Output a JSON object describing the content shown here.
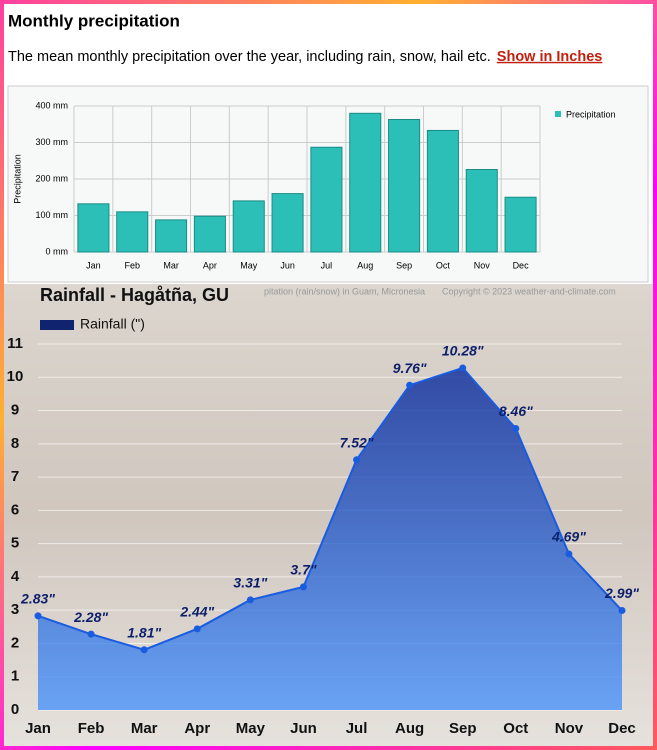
{
  "header": {
    "title": "Monthly precipitation",
    "subtitle": "The mean monthly precipitation over the year, including rain, snow, hail etc.",
    "link": "Show in Inches"
  },
  "chart_data": [
    {
      "type": "bar",
      "ylabel": "Precipitation",
      "categories": [
        "Jan",
        "Feb",
        "Mar",
        "Apr",
        "May",
        "Jun",
        "Jul",
        "Aug",
        "Sep",
        "Oct",
        "Nov",
        "Dec"
      ],
      "series": [
        {
          "name": "Precipitation",
          "color": "#2cbfb8",
          "values": [
            132,
            110,
            88,
            98,
            140,
            160,
            287,
            380,
            363,
            333,
            226,
            150
          ]
        }
      ],
      "ylim": [
        0,
        400
      ],
      "yticks": [
        {
          "value": 0,
          "label": "0 mm"
        },
        {
          "value": 100,
          "label": "100 mm"
        },
        {
          "value": 200,
          "label": "200 mm"
        },
        {
          "value": 300,
          "label": "300 mm"
        },
        {
          "value": 400,
          "label": "400 mm"
        }
      ],
      "grid": true,
      "legend": "right",
      "caption": "pitation (rain/snow) in Guam, Micronesia",
      "credit": "Copyright © 2023  weather-and-climate.com"
    },
    {
      "type": "area",
      "title": "Rainfall - Hagåtña, GU",
      "categories": [
        "Jan",
        "Feb",
        "Mar",
        "Apr",
        "May",
        "Jun",
        "Jul",
        "Aug",
        "Sep",
        "Oct",
        "Nov",
        "Dec"
      ],
      "series": [
        {
          "name": "Rainfall (\")",
          "color": "#1a5ce0",
          "values": [
            2.83,
            2.28,
            1.81,
            2.44,
            3.31,
            3.7,
            7.52,
            9.76,
            10.28,
            8.46,
            4.69,
            2.99
          ],
          "value_labels": [
            "2.83\"",
            "2.28\"",
            "1.81\"",
            "2.44\"",
            "3.31\"",
            "3.7\"",
            "7.52\"",
            "9.76\"",
            "10.28\"",
            "8.46\"",
            "4.69\"",
            "2.99\""
          ]
        }
      ],
      "ylim": [
        0,
        11
      ],
      "yticks": [
        0,
        1,
        2,
        3,
        4,
        5,
        6,
        7,
        8,
        9,
        10,
        11
      ],
      "grid": true,
      "legend": "top-left"
    }
  ]
}
